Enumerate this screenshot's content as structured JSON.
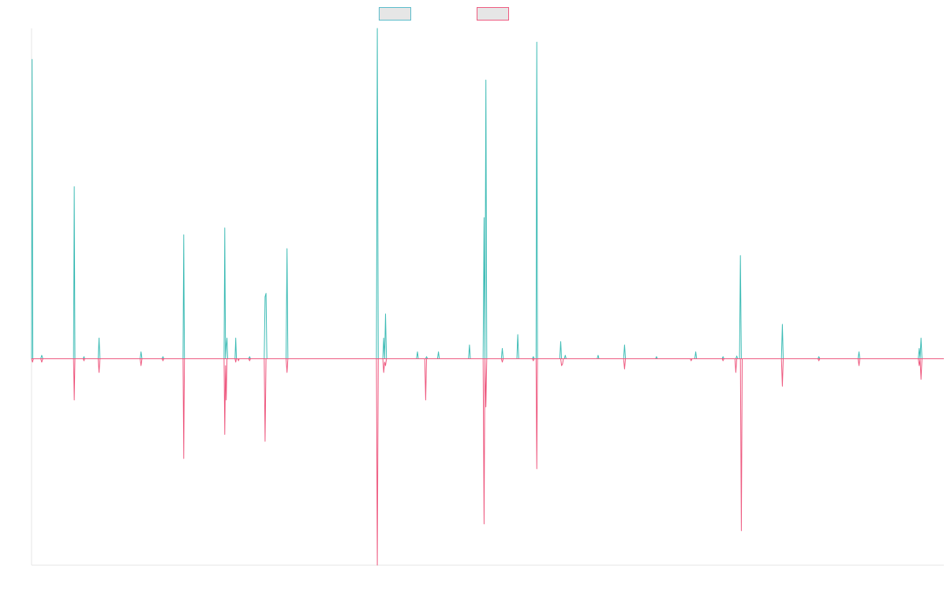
{
  "chart_data": {
    "type": "line",
    "title": "",
    "xlabel": "",
    "ylabel": "",
    "x_range": [
      0,
      1000
    ],
    "ylim": [
      -30,
      48
    ],
    "grid": false,
    "legend_position": "top-center",
    "series": [
      {
        "color": "#3fbcb6",
        "baseline": 0,
        "points": [
          [
            0,
            0
          ],
          [
            0.6,
            43.5
          ],
          [
            1.4,
            0
          ],
          [
            10,
            0
          ],
          [
            11.2,
            0.5
          ],
          [
            12.4,
            0
          ],
          [
            46,
            0
          ],
          [
            46.8,
            25
          ],
          [
            47.6,
            0
          ],
          [
            56.6,
            0
          ],
          [
            57.4,
            0.3
          ],
          [
            58.2,
            0
          ],
          [
            73,
            0
          ],
          [
            74,
            3
          ],
          [
            75,
            0
          ],
          [
            119,
            0
          ],
          [
            120,
            1
          ],
          [
            121,
            0
          ],
          [
            143,
            0
          ],
          [
            144,
            0.3
          ],
          [
            145,
            0
          ],
          [
            166,
            0
          ],
          [
            166.8,
            18
          ],
          [
            167.6,
            0
          ],
          [
            211,
            0
          ],
          [
            211.8,
            19
          ],
          [
            212.6,
            0
          ],
          [
            213.4,
            2
          ],
          [
            214.2,
            3
          ],
          [
            215,
            0
          ],
          [
            223,
            0
          ],
          [
            223.8,
            3
          ],
          [
            224.6,
            0
          ],
          [
            238,
            0
          ],
          [
            239,
            0.3
          ],
          [
            240,
            0
          ],
          [
            255,
            0
          ],
          [
            256,
            9
          ],
          [
            257,
            9.5
          ],
          [
            258,
            0
          ],
          [
            279,
            0
          ],
          [
            280,
            16
          ],
          [
            281,
            0
          ],
          [
            378,
            0
          ],
          [
            379,
            48
          ],
          [
            380,
            0
          ],
          [
            385,
            0
          ],
          [
            386,
            3
          ],
          [
            387,
            0
          ],
          [
            388,
            6.5
          ],
          [
            389,
            0
          ],
          [
            422,
            0
          ],
          [
            423,
            1
          ],
          [
            424,
            0
          ],
          [
            432,
            0
          ],
          [
            433,
            0.3
          ],
          [
            434,
            0
          ],
          [
            445,
            0
          ],
          [
            446,
            1
          ],
          [
            447,
            0
          ],
          [
            479,
            0
          ],
          [
            480,
            2
          ],
          [
            481,
            0
          ],
          [
            495,
            0
          ],
          [
            496,
            20.5
          ],
          [
            497,
            0
          ],
          [
            498,
            40.5
          ],
          [
            499,
            0
          ],
          [
            515,
            0
          ],
          [
            516,
            1.5
          ],
          [
            517,
            0
          ],
          [
            532,
            0
          ],
          [
            533,
            3.5
          ],
          [
            534,
            0
          ],
          [
            549,
            0
          ],
          [
            550,
            0.3
          ],
          [
            551,
            0
          ],
          [
            553,
            0
          ],
          [
            553.8,
            46
          ],
          [
            554.6,
            0
          ],
          [
            579,
            0
          ],
          [
            580,
            2.5
          ],
          [
            581,
            0
          ],
          [
            584,
            0
          ],
          [
            585,
            0.5
          ],
          [
            586,
            0
          ],
          [
            620,
            0
          ],
          [
            621,
            0.5
          ],
          [
            622,
            0
          ],
          [
            649,
            0
          ],
          [
            650,
            2
          ],
          [
            651,
            0
          ],
          [
            684,
            0
          ],
          [
            685,
            0.3
          ],
          [
            686,
            0
          ],
          [
            727,
            0
          ],
          [
            728,
            1
          ],
          [
            729,
            0
          ],
          [
            757,
            0
          ],
          [
            758,
            0.3
          ],
          [
            759,
            0
          ],
          [
            772,
            0
          ],
          [
            773,
            0.4
          ],
          [
            774,
            0
          ],
          [
            776,
            0
          ],
          [
            777,
            15
          ],
          [
            778,
            0
          ],
          [
            822,
            0
          ],
          [
            823,
            5
          ],
          [
            824,
            0
          ],
          [
            862,
            0
          ],
          [
            863,
            0.3
          ],
          [
            864,
            0
          ],
          [
            906,
            0
          ],
          [
            907,
            1
          ],
          [
            908,
            0
          ],
          [
            972,
            0
          ],
          [
            973,
            1.5
          ],
          [
            974,
            0
          ],
          [
            975,
            3
          ],
          [
            976,
            0
          ],
          [
            1000,
            0
          ]
        ]
      },
      {
        "color": "#ee5a80",
        "baseline": 0,
        "points": [
          [
            0,
            0
          ],
          [
            1,
            -0.5
          ],
          [
            2,
            0
          ],
          [
            10,
            0
          ],
          [
            11.2,
            -0.5
          ],
          [
            12.4,
            0
          ],
          [
            46,
            0
          ],
          [
            46.8,
            -6
          ],
          [
            47.6,
            0
          ],
          [
            56.6,
            0
          ],
          [
            57.4,
            -0.3
          ],
          [
            58.2,
            0
          ],
          [
            73,
            0
          ],
          [
            74,
            -2
          ],
          [
            75,
            0
          ],
          [
            119,
            0
          ],
          [
            120,
            -1
          ],
          [
            121,
            0
          ],
          [
            143,
            0
          ],
          [
            144,
            -0.3
          ],
          [
            145,
            0
          ],
          [
            166,
            0
          ],
          [
            166.8,
            -14.5
          ],
          [
            167.6,
            0
          ],
          [
            211,
            0
          ],
          [
            211.8,
            -11
          ],
          [
            212.6,
            -1
          ],
          [
            213.4,
            -6
          ],
          [
            214.2,
            0
          ],
          [
            223,
            0
          ],
          [
            223.8,
            -0.5
          ],
          [
            224.6,
            0
          ],
          [
            226,
            0
          ],
          [
            226.8,
            -0.3
          ],
          [
            227.6,
            0
          ],
          [
            238,
            0
          ],
          [
            239,
            -0.3
          ],
          [
            240,
            0
          ],
          [
            255,
            0
          ],
          [
            256,
            -12
          ],
          [
            257,
            0
          ],
          [
            279,
            0
          ],
          [
            280,
            -2
          ],
          [
            281,
            0
          ],
          [
            378,
            0
          ],
          [
            379,
            -30
          ],
          [
            380,
            0
          ],
          [
            385,
            0
          ],
          [
            386,
            -2
          ],
          [
            387,
            -0.5
          ],
          [
            388,
            -1
          ],
          [
            389,
            0
          ],
          [
            431,
            0
          ],
          [
            432,
            -6
          ],
          [
            433,
            0
          ],
          [
            495,
            0
          ],
          [
            496,
            -24
          ],
          [
            497,
            0
          ],
          [
            498,
            -7
          ],
          [
            499,
            0
          ],
          [
            515,
            0
          ],
          [
            516,
            -0.5
          ],
          [
            517,
            0
          ],
          [
            549,
            0
          ],
          [
            550,
            -0.3
          ],
          [
            551,
            0
          ],
          [
            553,
            0
          ],
          [
            553.8,
            -16
          ],
          [
            554.6,
            0
          ],
          [
            580,
            0
          ],
          [
            581,
            -1
          ],
          [
            582,
            -0.8
          ],
          [
            583,
            0
          ],
          [
            649,
            0
          ],
          [
            650,
            -1.5
          ],
          [
            651,
            0
          ],
          [
            722,
            0
          ],
          [
            723,
            -0.3
          ],
          [
            724,
            0
          ],
          [
            757,
            0
          ],
          [
            758,
            -0.3
          ],
          [
            759,
            0
          ],
          [
            771,
            0
          ],
          [
            772,
            -2
          ],
          [
            773,
            0
          ],
          [
            777,
            0
          ],
          [
            778,
            -25
          ],
          [
            779,
            0
          ],
          [
            822,
            0
          ],
          [
            823,
            -4
          ],
          [
            824,
            0
          ],
          [
            862,
            0
          ],
          [
            863,
            -0.3
          ],
          [
            864,
            0
          ],
          [
            906,
            0
          ],
          [
            907,
            -1
          ],
          [
            908,
            0
          ],
          [
            972,
            0
          ],
          [
            973,
            -1
          ],
          [
            974,
            0
          ],
          [
            975,
            -3
          ],
          [
            976,
            0
          ],
          [
            1000,
            0
          ]
        ]
      }
    ]
  },
  "legend": {
    "items": [
      {
        "label": "",
        "color": "#5bbccb"
      },
      {
        "label": "",
        "color": "#ee5a80"
      }
    ]
  }
}
